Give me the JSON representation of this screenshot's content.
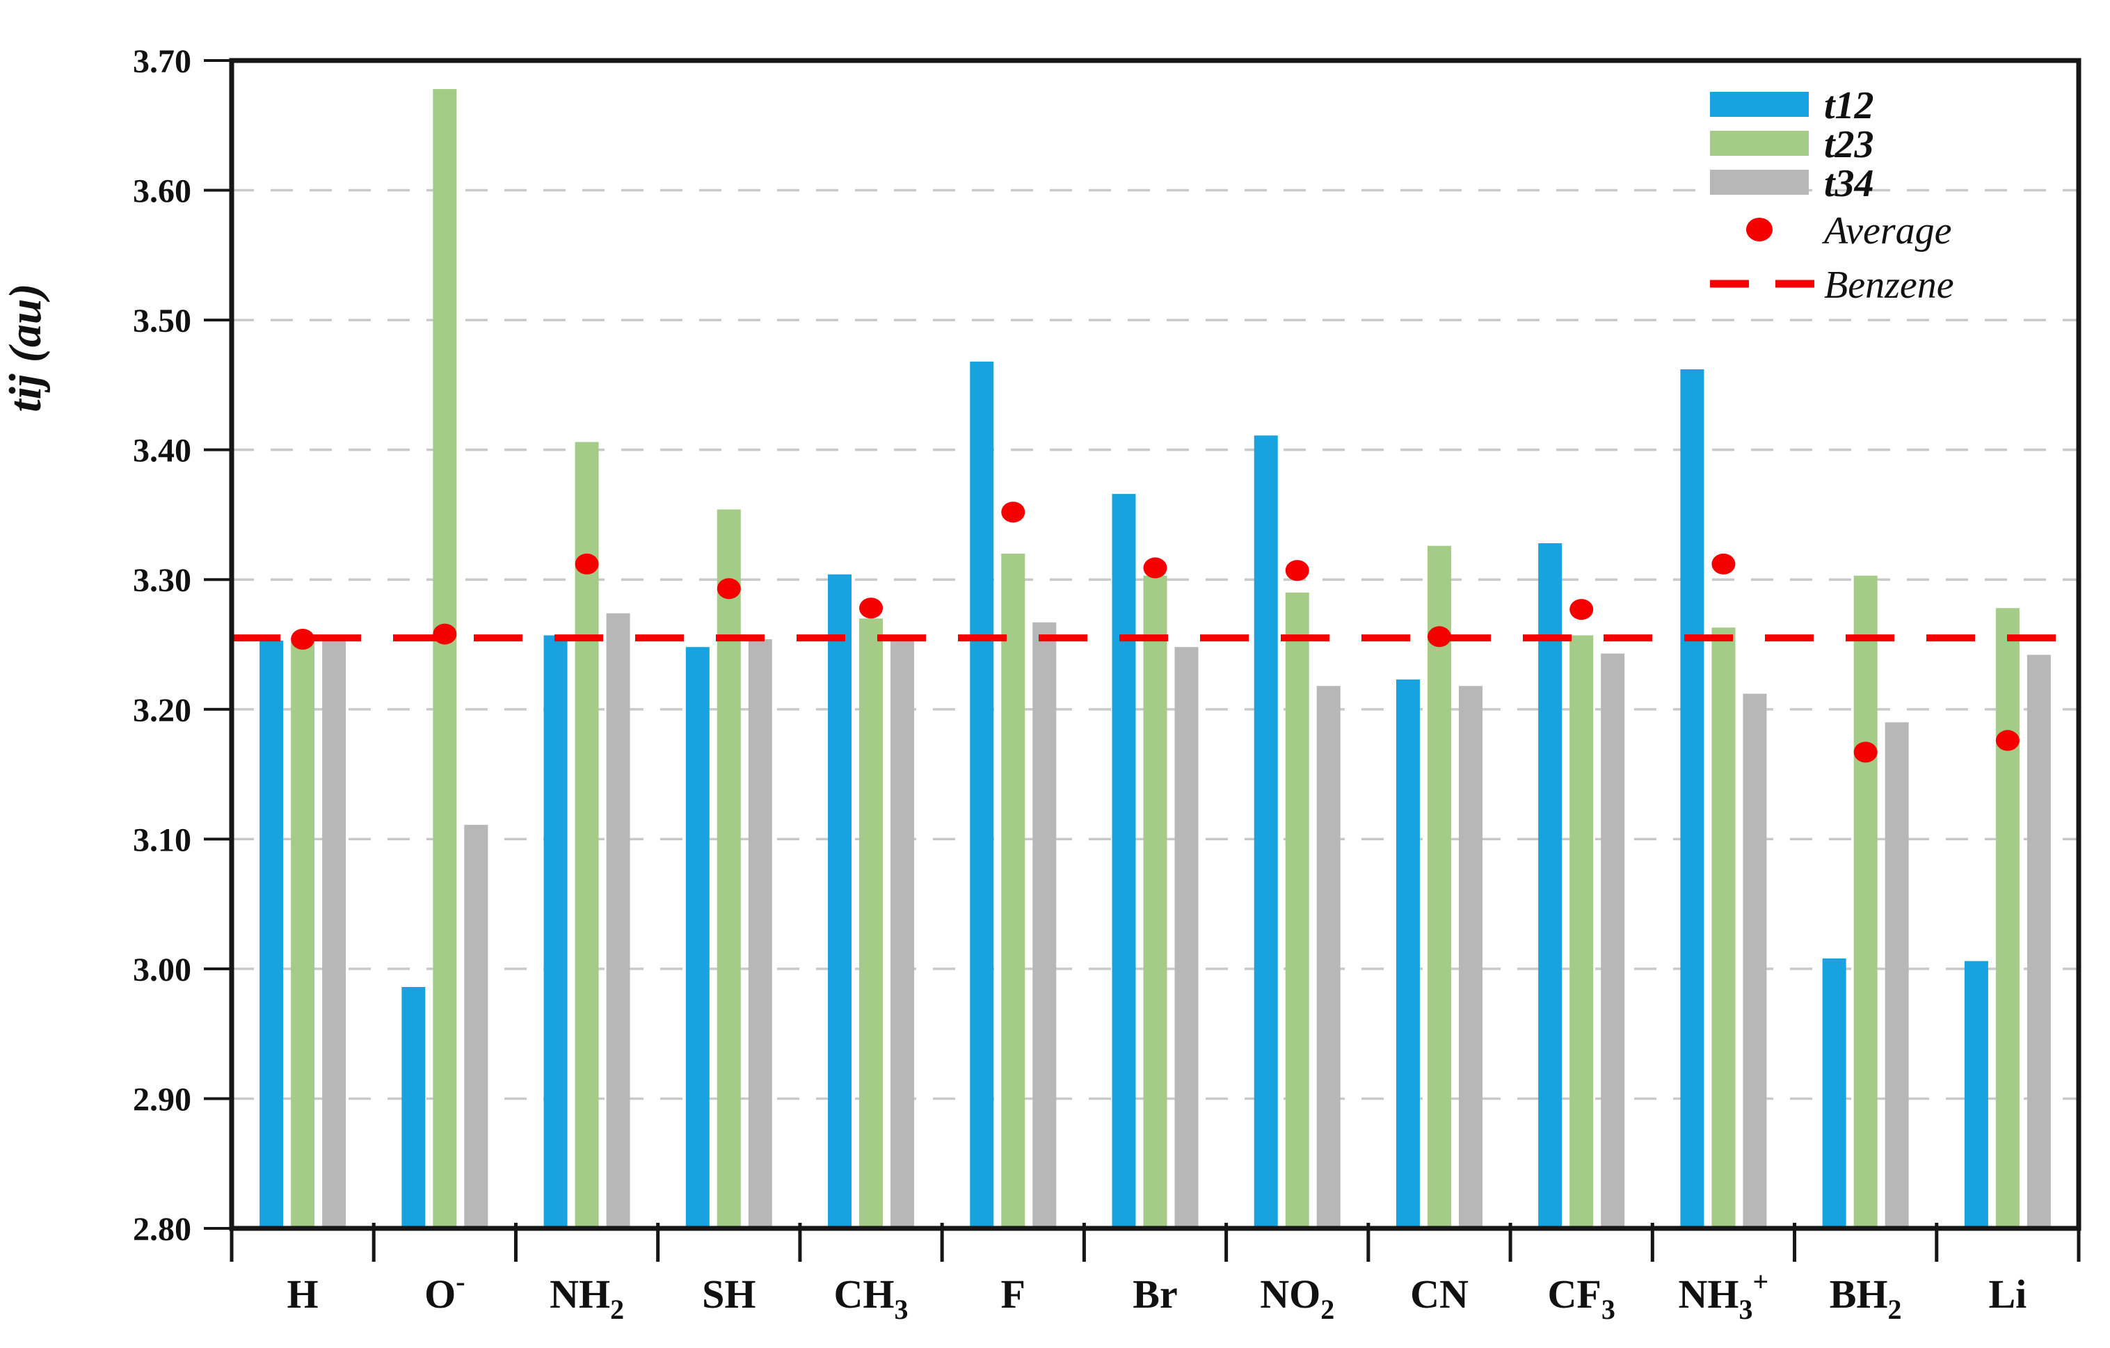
{
  "figure": {
    "kind": "scientific grouped bar chart",
    "background": "#ffffff",
    "frame_color": "#161616",
    "gridline_color": "#c9c9c9"
  },
  "chart_data": {
    "type": "bar",
    "title": "",
    "xlabel": "",
    "ylabel": "tij (au)",
    "ylim": [
      2.8,
      3.7
    ],
    "ytick_step": 0.1,
    "y_ticks": [
      "2.80",
      "2.90",
      "3.00",
      "3.10",
      "3.20",
      "3.30",
      "3.40",
      "3.50",
      "3.60",
      "3.70"
    ],
    "grid": "horizontal dashed, on",
    "legend_position": "top-right inside plot",
    "categories": [
      {
        "label": "H",
        "parts": [
          {
            "t": "H"
          }
        ]
      },
      {
        "label": "O-",
        "parts": [
          {
            "t": "O"
          },
          {
            "t": "-",
            "sup": true
          }
        ]
      },
      {
        "label": "NH2",
        "parts": [
          {
            "t": "NH"
          },
          {
            "t": "2",
            "sub": true
          }
        ]
      },
      {
        "label": "SH",
        "parts": [
          {
            "t": "SH"
          }
        ]
      },
      {
        "label": "CH3",
        "parts": [
          {
            "t": "CH"
          },
          {
            "t": "3",
            "sub": true
          }
        ]
      },
      {
        "label": "F",
        "parts": [
          {
            "t": "F"
          }
        ]
      },
      {
        "label": "Br",
        "parts": [
          {
            "t": "Br"
          }
        ]
      },
      {
        "label": "NO2",
        "parts": [
          {
            "t": "NO"
          },
          {
            "t": "2",
            "sub": true
          }
        ]
      },
      {
        "label": "CN",
        "parts": [
          {
            "t": "CN"
          }
        ]
      },
      {
        "label": "CF3",
        "parts": [
          {
            "t": "CF"
          },
          {
            "t": "3",
            "sub": true
          }
        ]
      },
      {
        "label": "NH3+",
        "parts": [
          {
            "t": "NH"
          },
          {
            "t": "3",
            "sub": true
          },
          {
            "t": "+",
            "sup": true
          }
        ]
      },
      {
        "label": "BH2",
        "parts": [
          {
            "t": "BH"
          },
          {
            "t": "2",
            "sub": true
          }
        ]
      },
      {
        "label": "Li",
        "parts": [
          {
            "t": "Li"
          }
        ]
      }
    ],
    "series": [
      {
        "name": "t12",
        "color": "#18a3e0",
        "values": [
          3.253,
          2.986,
          3.257,
          3.248,
          3.304,
          3.468,
          3.366,
          3.411,
          3.223,
          3.328,
          3.462,
          3.008,
          3.006
        ]
      },
      {
        "name": "t23",
        "color": "#a4cb87",
        "values": [
          3.252,
          3.678,
          3.406,
          3.354,
          3.27,
          3.32,
          3.303,
          3.29,
          3.326,
          3.257,
          3.263,
          3.303,
          3.278
        ]
      },
      {
        "name": "t34",
        "color": "#b7b7b7",
        "values": [
          3.254,
          3.111,
          3.274,
          3.254,
          3.255,
          3.267,
          3.248,
          3.218,
          3.218,
          3.243,
          3.212,
          3.19,
          3.242
        ]
      }
    ],
    "points_series": {
      "name": "Average",
      "color": "#f40000",
      "marker": "dot",
      "values": [
        3.254,
        3.258,
        3.312,
        3.293,
        3.278,
        3.352,
        3.309,
        3.307,
        3.256,
        3.277,
        3.312,
        3.167,
        3.176
      ]
    },
    "reference_line": {
      "name": "Benzene",
      "value": 3.255,
      "color": "#f40000",
      "style": "dashed"
    },
    "legend": [
      {
        "label": "t12",
        "type": "swatch",
        "color": "#18a3e0",
        "bold": true
      },
      {
        "label": "t23",
        "type": "swatch",
        "color": "#a4cb87",
        "bold": true
      },
      {
        "label": "t34",
        "type": "swatch",
        "color": "#b7b7b7",
        "bold": true
      },
      {
        "label": "Average",
        "type": "dot",
        "color": "#f40000",
        "bold": false
      },
      {
        "label": "Benzene",
        "type": "dash",
        "color": "#f40000",
        "bold": false
      }
    ]
  }
}
